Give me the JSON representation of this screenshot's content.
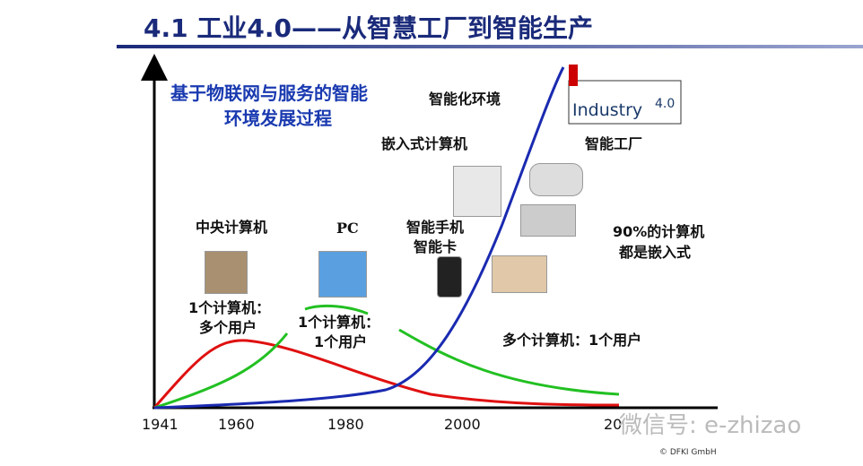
{
  "title": "4.1 工业4.0——从智慧工厂到智能生产",
  "subtitle": [
    "基于物联网与服务的智能",
    "环境发展过程"
  ],
  "labels": {
    "smart_environment": "智能化环境",
    "embedded_computer": "嵌入式计算机",
    "smart_factory": "智能工厂",
    "mainframe": "中央计算机",
    "pc": "PC",
    "smartphone": [
      "智能手机",
      "智能卡"
    ],
    "embedded_share": [
      "90%的计算机",
      "都是嵌入式"
    ],
    "mainframe_users": [
      "1个计算机：",
      "多个用户"
    ],
    "pc_users": [
      "1个计算机：",
      "1个用户"
    ],
    "embedded_users": "多个计算机：1个用户"
  },
  "x_axis_labels": [
    "1941",
    "1960",
    "1980",
    "2000",
    "20"
  ],
  "logo": {
    "text": "Industry",
    "version": "4.0"
  },
  "watermark": "微信号: e-zhizao",
  "copyright": "© DFKI GmbH"
}
